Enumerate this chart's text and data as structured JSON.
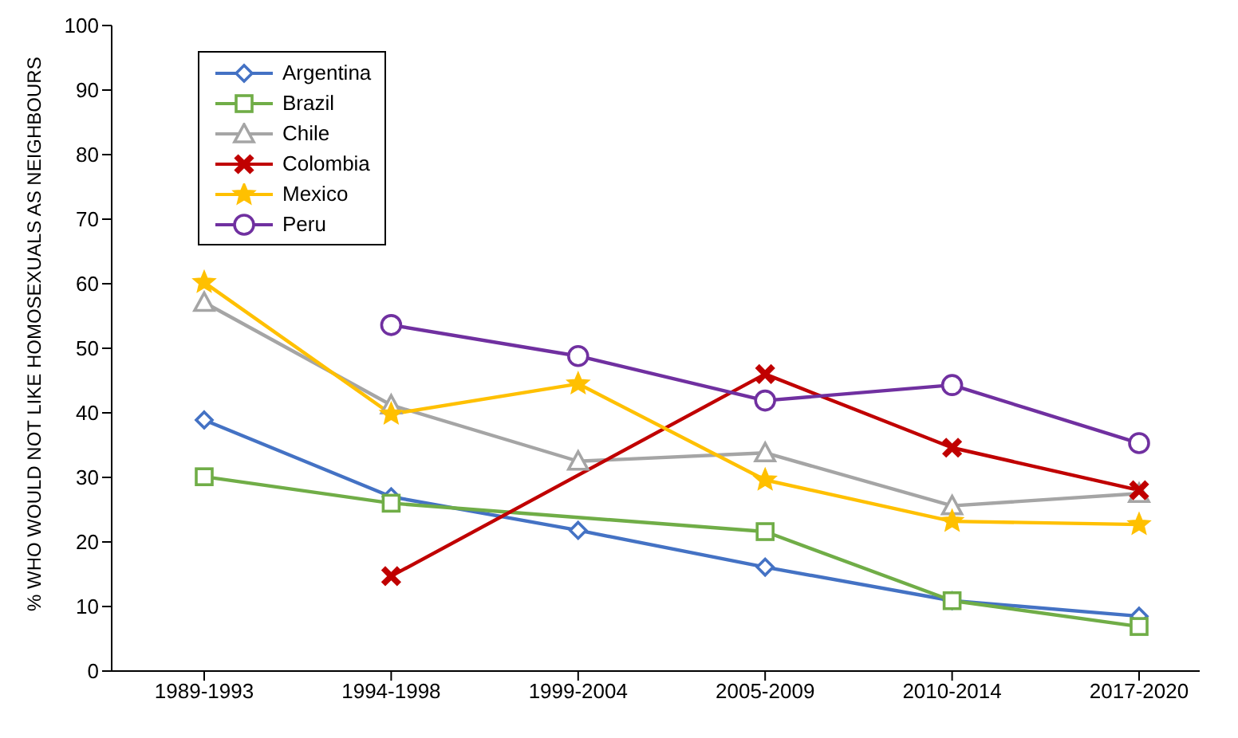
{
  "chart_data": {
    "type": "line",
    "ylabel": "% WHO WOULD NOT LIKE HOMOSEXUALS AS NEIGHBOURS",
    "categories": [
      "1989-1993",
      "1994-1998",
      "1999-2004",
      "2005-2009",
      "2010-2014",
      "2017-2020"
    ],
    "series": [
      {
        "name": "Argentina",
        "color": "#4472c4",
        "marker": "diamond",
        "values": [
          38.9,
          27,
          21.8,
          16.1,
          10.9,
          8.5
        ]
      },
      {
        "name": "Brazil",
        "color": "#70ad47",
        "marker": "square",
        "values": [
          30.1,
          26,
          null,
          21.6,
          10.9,
          6.9
        ]
      },
      {
        "name": "Chile",
        "color": "#a5a5a5",
        "marker": "triangle",
        "values": [
          57.1,
          41.2,
          32.5,
          33.8,
          25.6,
          27.5
        ]
      },
      {
        "name": "Colombia",
        "color": "#c00000",
        "marker": "cross",
        "values": [
          null,
          14.7,
          null,
          46,
          34.6,
          28
        ]
      },
      {
        "name": "Mexico",
        "color": "#ffc000",
        "marker": "star",
        "values": [
          60.2,
          39.8,
          44.5,
          29.6,
          23.2,
          22.7
        ]
      },
      {
        "name": "Peru",
        "color": "#7030a0",
        "marker": "circle",
        "values": [
          null,
          53.6,
          48.8,
          41.9,
          44.3,
          35.3
        ]
      }
    ],
    "ylim": [
      0,
      100
    ],
    "yticks": [
      0,
      10,
      20,
      30,
      40,
      50,
      60,
      70,
      80,
      90,
      100
    ],
    "grid": false,
    "legend": "top left"
  }
}
